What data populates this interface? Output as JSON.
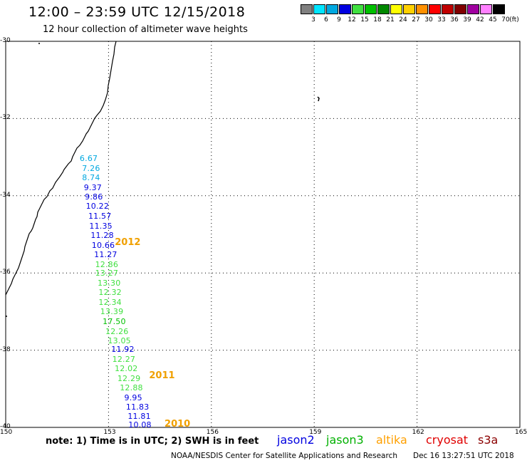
{
  "header": {
    "title": "12:00 – 23:59 UTC 12/15/2018",
    "subtitle": "12 hour collection of altimeter wave heights"
  },
  "color_scale": {
    "unit": "(ft)",
    "swatches": [
      {
        "color": "#808080",
        "label": "3"
      },
      {
        "color": "#00e5ff",
        "label": "6"
      },
      {
        "color": "#00a8e0",
        "label": "9"
      },
      {
        "color": "#0000e0",
        "label": "12"
      },
      {
        "color": "#40e040",
        "label": "15"
      },
      {
        "color": "#00c000",
        "label": "18"
      },
      {
        "color": "#008800",
        "label": "21"
      },
      {
        "color": "#ffff00",
        "label": "24"
      },
      {
        "color": "#ffd000",
        "label": "27"
      },
      {
        "color": "#ff9000",
        "label": "30"
      },
      {
        "color": "#ff0000",
        "label": "33"
      },
      {
        "color": "#c00000",
        "label": "36"
      },
      {
        "color": "#800000",
        "label": "39"
      },
      {
        "color": "#a000a0",
        "label": "42"
      },
      {
        "color": "#ff80ff",
        "label": "45"
      },
      {
        "color": "#000000",
        "label": "70"
      }
    ]
  },
  "map": {
    "lat_labels": [
      "-30",
      "-32",
      "-34",
      "-36",
      "-38",
      "-40"
    ],
    "lon_labels": [
      "150",
      "153",
      "156",
      "159",
      "162",
      "165"
    ],
    "lat_values": [
      -30,
      -32,
      -34,
      -36,
      -38,
      -40
    ],
    "lon_values": [
      150,
      153,
      156,
      159,
      162,
      165
    ]
  },
  "observations": [
    {
      "value": "6.67",
      "color": "#00a8e0",
      "lat": -33.03,
      "lon": 152.45
    },
    {
      "value": "7.26",
      "color": "#00a8e0",
      "lat": -33.28,
      "lon": 152.52
    },
    {
      "value": "8.74",
      "color": "#00a8e0",
      "lat": -33.53,
      "lon": 152.52
    },
    {
      "value": "9.37",
      "color": "#0000e0",
      "lat": -33.78,
      "lon": 152.57
    },
    {
      "value": "9.86",
      "color": "#0000e0",
      "lat": -34.02,
      "lon": 152.6
    },
    {
      "value": "10.22",
      "color": "#0000e0",
      "lat": -34.27,
      "lon": 152.63
    },
    {
      "value": "11.57",
      "color": "#0000e0",
      "lat": -34.52,
      "lon": 152.7
    },
    {
      "value": "11.35",
      "color": "#0000e0",
      "lat": -34.77,
      "lon": 152.73
    },
    {
      "value": "11.28",
      "color": "#0000e0",
      "lat": -35.02,
      "lon": 152.77
    },
    {
      "value": "10.66",
      "color": "#0000e0",
      "lat": -35.27,
      "lon": 152.8
    },
    {
      "value": "11.27",
      "color": "#0000e0",
      "lat": -35.52,
      "lon": 152.87
    },
    {
      "value": "12.86",
      "color": "#40e040",
      "lat": -35.77,
      "lon": 152.9
    },
    {
      "value": "13.27",
      "color": "#40e040",
      "lat": -36.0,
      "lon": 152.9
    },
    {
      "value": "13.30",
      "color": "#40e040",
      "lat": -36.25,
      "lon": 152.97
    },
    {
      "value": "12.32",
      "color": "#40e040",
      "lat": -36.5,
      "lon": 153.0
    },
    {
      "value": "12.34",
      "color": "#40e040",
      "lat": -36.75,
      "lon": 153.0
    },
    {
      "value": "13.39",
      "color": "#40e040",
      "lat": -37.0,
      "lon": 153.05
    },
    {
      "value": "17.50",
      "color": "#00c000",
      "lat": -37.25,
      "lon": 153.12
    },
    {
      "value": "12.26",
      "color": "#40e040",
      "lat": -37.5,
      "lon": 153.2
    },
    {
      "value": "13.05",
      "color": "#40e040",
      "lat": -37.75,
      "lon": 153.27
    },
    {
      "value": "11.92",
      "color": "#0000e0",
      "lat": -37.97,
      "lon": 153.37
    },
    {
      "value": "12.27",
      "color": "#40e040",
      "lat": -38.22,
      "lon": 153.4
    },
    {
      "value": "12.02",
      "color": "#40e040",
      "lat": -38.47,
      "lon": 153.47
    },
    {
      "value": "12.29",
      "color": "#40e040",
      "lat": -38.72,
      "lon": 153.55
    },
    {
      "value": "12.88",
      "color": "#40e040",
      "lat": -38.97,
      "lon": 153.62
    },
    {
      "value": "9.95",
      "color": "#0000e0",
      "lat": -39.22,
      "lon": 153.75
    },
    {
      "value": "11.83",
      "color": "#0000e0",
      "lat": -39.47,
      "lon": 153.8
    },
    {
      "value": "11.81",
      "color": "#0000e0",
      "lat": -39.7,
      "lon": 153.85
    },
    {
      "value": "10.08",
      "color": "#0000e0",
      "lat": -39.93,
      "lon": 153.87
    }
  ],
  "time_labels": [
    {
      "text": "2012",
      "lat": -35.22,
      "lon": 153.35
    },
    {
      "text": "2011",
      "lat": -38.67,
      "lon": 154.35
    },
    {
      "text": "2010",
      "lat": -39.93,
      "lon": 154.8
    }
  ],
  "legend": {
    "note": "note: 1) Time is in UTC; 2) SWH is in feet",
    "satellites": [
      {
        "name": "jason2",
        "color": "#0000e0"
      },
      {
        "name": "jason3",
        "color": "#00b000"
      },
      {
        "name": "altika",
        "color": "#ffa000"
      },
      {
        "name": "cryosat",
        "color": "#e00000"
      },
      {
        "name": "s3a",
        "color": "#8b0000"
      }
    ]
  },
  "footer": {
    "credit": "NOAA/NESDIS Center for Satellite Applications and Research",
    "timestamp": "Dec 16 13:27:51 UTC 2018"
  }
}
